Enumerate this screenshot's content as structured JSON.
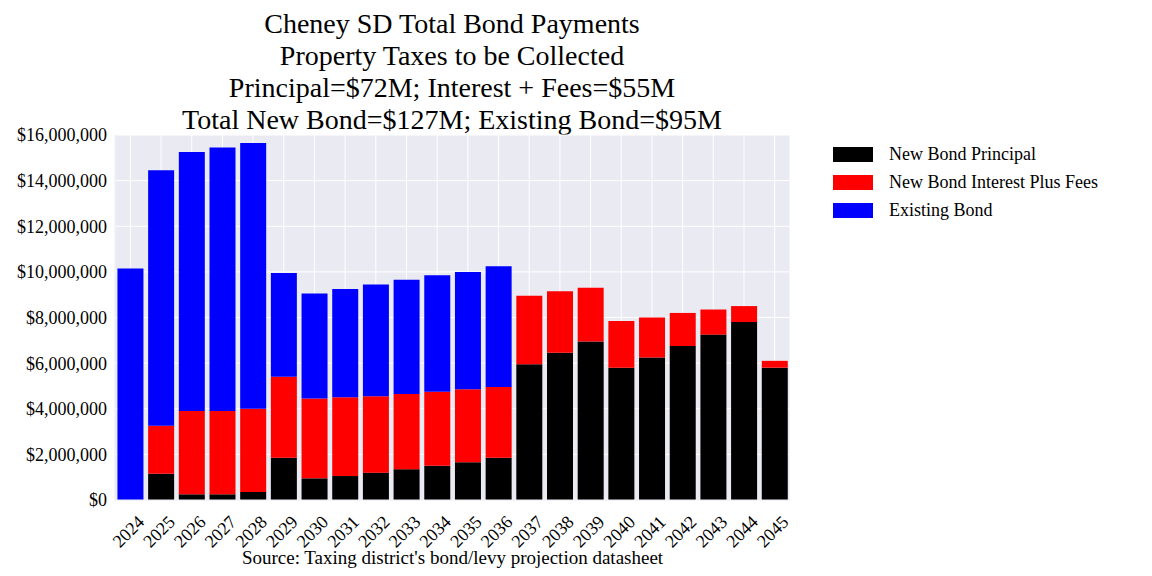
{
  "chart_data": {
    "type": "bar",
    "title": [
      "Cheney SD Total Bond Payments",
      "Property Taxes to be Collected",
      "Principal=$72M; Interest + Fees=$55M",
      "Total New Bond=$127M; Existing Bond=$95M"
    ],
    "x_label": "Source: Taxing district's bond/levy projection datasheet",
    "categories": [
      "2024",
      "2025",
      "2026",
      "2027",
      "2028",
      "2029",
      "2030",
      "2031",
      "2032",
      "2033",
      "2034",
      "2035",
      "2036",
      "2037",
      "2038",
      "2039",
      "2040",
      "2041",
      "2042",
      "2043",
      "2044",
      "2045"
    ],
    "series": [
      {
        "name": "New Bond Principal",
        "color": "#000000",
        "values": [
          0,
          1150000,
          250000,
          250000,
          350000,
          1850000,
          950000,
          1050000,
          1200000,
          1350000,
          1500000,
          1650000,
          1850000,
          5950000,
          6450000,
          6950000,
          5800000,
          6250000,
          6750000,
          7250000,
          7800000,
          5800000
        ]
      },
      {
        "name": "New Bond Interest Plus Fees",
        "color": "#ff0000",
        "values": [
          0,
          2100000,
          3650000,
          3650000,
          3650000,
          3550000,
          3500000,
          3450000,
          3350000,
          3300000,
          3250000,
          3200000,
          3100000,
          3000000,
          2700000,
          2350000,
          2050000,
          1750000,
          1450000,
          1100000,
          700000,
          300000
        ]
      },
      {
        "name": "Existing Bond",
        "color": "#0000ff",
        "values": [
          10150000,
          11200000,
          11350000,
          11550000,
          11650000,
          4550000,
          4600000,
          4750000,
          4900000,
          5000000,
          5100000,
          5150000,
          5300000,
          0,
          0,
          0,
          0,
          0,
          0,
          0,
          0,
          0
        ]
      }
    ],
    "stacked": true,
    "ylim": [
      0,
      16000000
    ],
    "yticks": [
      {
        "value": 0,
        "label": "$0"
      },
      {
        "value": 2000000,
        "label": "$2,000,000"
      },
      {
        "value": 4000000,
        "label": "$4,000,000"
      },
      {
        "value": 6000000,
        "label": "$6,000,000"
      },
      {
        "value": 8000000,
        "label": "$8,000,000"
      },
      {
        "value": 10000000,
        "label": "$10,000,000"
      },
      {
        "value": 12000000,
        "label": "$12,000,000"
      },
      {
        "value": 14000000,
        "label": "$14,000,000"
      },
      {
        "value": 16000000,
        "label": "$16,000,000"
      }
    ],
    "grid": true,
    "legend": "right"
  }
}
